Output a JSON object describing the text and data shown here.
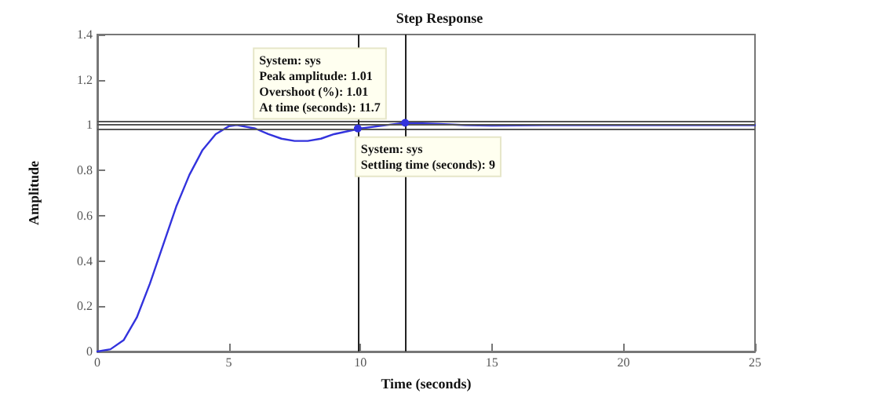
{
  "chart_data": {
    "type": "line",
    "title": "Step Response",
    "xlabel": "Time (seconds)",
    "ylabel": "Amplitude",
    "x": [
      0,
      0.5,
      1,
      1.5,
      2,
      2.5,
      3,
      3.5,
      4,
      4.5,
      5,
      5.3,
      6,
      6.5,
      7,
      7.5,
      8,
      8.5,
      9,
      10,
      11,
      11.7,
      13,
      14,
      15,
      17,
      20,
      25
    ],
    "series": [
      {
        "color": "#3333dd",
        "values": [
          0,
          0.01,
          0.05,
          0.15,
          0.3,
          0.47,
          0.64,
          0.78,
          0.89,
          0.96,
          0.995,
          1.0,
          0.985,
          0.96,
          0.94,
          0.93,
          0.93,
          0.94,
          0.96,
          0.985,
          1.0,
          1.01,
          1.005,
          1.0,
          0.998,
          1.0,
          1.0,
          1.0
        ]
      }
    ],
    "xlim": [
      0,
      25
    ],
    "xticks": [
      0,
      5,
      10,
      15,
      20,
      25
    ],
    "ylim": [
      0,
      1.4
    ],
    "yticks": [
      0,
      0.2,
      0.4,
      0.6,
      0.8,
      1,
      1.2,
      1.4
    ],
    "ref_lines": [
      {
        "axis": "y",
        "value": 1.02,
        "color": "#555555"
      },
      {
        "axis": "y",
        "value": 1,
        "color": "#555555"
      },
      {
        "axis": "y",
        "value": 0.98,
        "color": "#555555"
      },
      {
        "axis": "x",
        "value": 9.9,
        "color": "#222222"
      },
      {
        "axis": "x",
        "value": 11.7,
        "color": "#222222"
      }
    ],
    "annotations": [
      {
        "text": "System: sys\nPeak amplitude: 1.01\nOvershoot (%): 1.01\nAt time (seconds): 11.7",
        "x": 11.7,
        "y": 1.01
      },
      {
        "text": "System: sys\nSettling time (seconds): 9",
        "x": 9.9,
        "y": 0.985
      }
    ],
    "grid": false,
    "marker": "none",
    "line_style": "solid"
  }
}
